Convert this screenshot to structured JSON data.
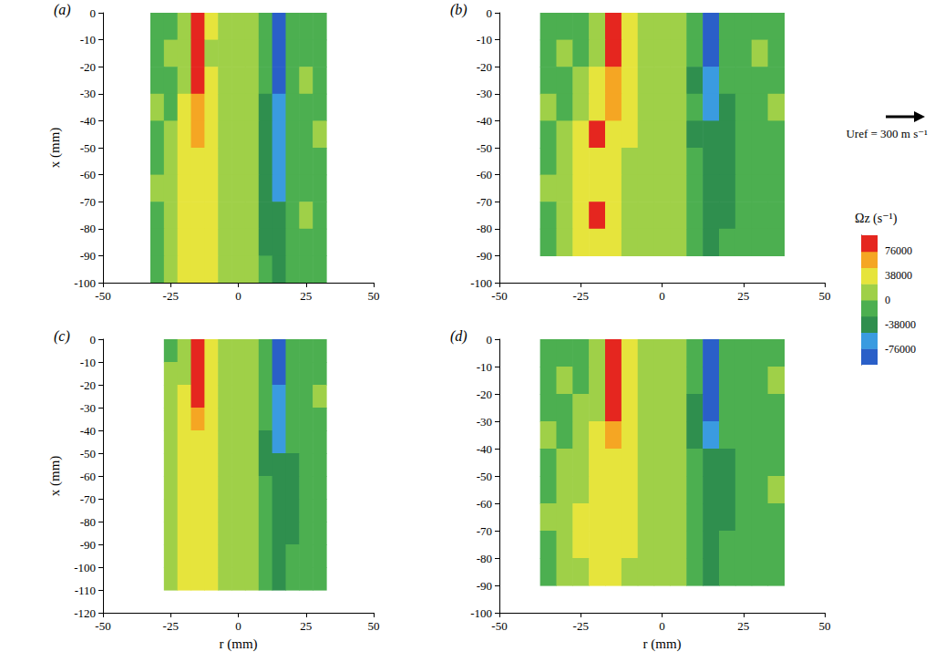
{
  "chart_data": {
    "type": "heatmap",
    "xlabel": "r (mm)",
    "ylabel": "x (mm)",
    "reference_vector": {
      "label": "Uref = 300 m s⁻¹"
    },
    "colorbar": {
      "label": "Ωz (s⁻¹)",
      "range": [
        -100000,
        100000
      ],
      "ticks": [
        -76000,
        -38000,
        0,
        38000,
        76000
      ],
      "colors": [
        "#2a5fc8",
        "#3a9be0",
        "#2f8f4e",
        "#4caf50",
        "#9fd048",
        "#e6e43c",
        "#f5a623",
        "#e5261f"
      ]
    },
    "panels": [
      {
        "label": "(a)",
        "xlim": [
          -50,
          50
        ],
        "xticks": [
          -50,
          -25,
          0,
          25,
          50
        ],
        "ylim": [
          -100,
          0
        ],
        "yticks": [
          0,
          -10,
          -20,
          -30,
          -40,
          -50,
          -60,
          -70,
          -80,
          -90,
          -100
        ],
        "vorticity": {
          "r": [
            -30,
            -25,
            -20,
            -15,
            -10,
            -5,
            0,
            5,
            10,
            15,
            20,
            25,
            30
          ],
          "x": [
            -5,
            -15,
            -25,
            -35,
            -45,
            -55,
            -65,
            -75,
            -85,
            -95
          ],
          "values": [
            [
              -5000,
              -5000,
              10000,
              90000,
              30000,
              10000,
              5000,
              10000,
              -10000,
              -90000,
              -10000,
              -5000,
              -5000
            ],
            [
              -5000,
              5000,
              15000,
              85000,
              20000,
              10000,
              15000,
              5000,
              -20000,
              -85000,
              -15000,
              -5000,
              -10000
            ],
            [
              -5000,
              -5000,
              20000,
              80000,
              25000,
              15000,
              10000,
              10000,
              -25000,
              -80000,
              -10000,
              5000,
              -5000
            ],
            [
              5000,
              -5000,
              25000,
              70000,
              30000,
              20000,
              15000,
              10000,
              -30000,
              -70000,
              -15000,
              -5000,
              -5000
            ],
            [
              -5000,
              10000,
              30000,
              55000,
              30000,
              20000,
              10000,
              5000,
              -30000,
              -65000,
              -20000,
              -5000,
              5000
            ],
            [
              -5000,
              5000,
              35000,
              45000,
              30000,
              15000,
              20000,
              10000,
              -35000,
              -60000,
              -20000,
              -5000,
              -5000
            ],
            [
              5000,
              15000,
              40000,
              40000,
              25000,
              20000,
              10000,
              5000,
              -30000,
              -55000,
              -25000,
              -5000,
              -5000
            ],
            [
              -5000,
              20000,
              40000,
              35000,
              30000,
              15000,
              10000,
              10000,
              -35000,
              -50000,
              -20000,
              5000,
              -5000
            ],
            [
              -5000,
              15000,
              35000,
              30000,
              25000,
              20000,
              10000,
              5000,
              -30000,
              -45000,
              -25000,
              -5000,
              -5000
            ],
            [
              -5000,
              10000,
              30000,
              30000,
              25000,
              15000,
              10000,
              10000,
              -25000,
              -45000,
              -20000,
              -5000,
              -5000
            ]
          ]
        }
      },
      {
        "label": "(b)",
        "xlim": [
          -50,
          50
        ],
        "xticks": [
          -50,
          -25,
          0,
          25,
          50
        ],
        "ylim": [
          -100,
          0
        ],
        "yticks": [
          0,
          -10,
          -20,
          -30,
          -40,
          -50,
          -60,
          -70,
          -80,
          -90,
          -100
        ],
        "vorticity": {
          "r": [
            -35,
            -30,
            -25,
            -20,
            -15,
            -10,
            -5,
            0,
            5,
            10,
            15,
            20,
            25,
            30,
            35
          ],
          "x": [
            -5,
            -15,
            -25,
            -35,
            -45,
            -55,
            -65,
            -75,
            -85
          ],
          "values": [
            [
              -5000,
              -5000,
              -5000,
              10000,
              90000,
              30000,
              10000,
              5000,
              10000,
              -20000,
              -90000,
              -10000,
              -5000,
              -5000,
              -5000
            ],
            [
              -5000,
              5000,
              -5000,
              15000,
              85000,
              25000,
              10000,
              15000,
              5000,
              -20000,
              -85000,
              -15000,
              -5000,
              5000,
              -5000
            ],
            [
              -5000,
              -5000,
              5000,
              30000,
              70000,
              30000,
              15000,
              5000,
              10000,
              -30000,
              -75000,
              -20000,
              -5000,
              -5000,
              -5000
            ],
            [
              5000,
              -5000,
              10000,
              40000,
              50000,
              25000,
              20000,
              10000,
              5000,
              -25000,
              -60000,
              -30000,
              -10000,
              -5000,
              5000
            ],
            [
              -5000,
              5000,
              30000,
              85000,
              40000,
              30000,
              10000,
              15000,
              10000,
              -30000,
              -50000,
              -35000,
              -15000,
              -5000,
              -5000
            ],
            [
              -5000,
              10000,
              35000,
              40000,
              30000,
              20000,
              15000,
              5000,
              10000,
              -20000,
              -45000,
              -30000,
              -15000,
              -5000,
              -5000
            ],
            [
              5000,
              10000,
              30000,
              35000,
              25000,
              15000,
              10000,
              10000,
              5000,
              -25000,
              -40000,
              -35000,
              -20000,
              -5000,
              -5000
            ],
            [
              -5000,
              15000,
              35000,
              80000,
              40000,
              20000,
              10000,
              5000,
              10000,
              -20000,
              -35000,
              -30000,
              -20000,
              -10000,
              -5000
            ],
            [
              -5000,
              10000,
              30000,
              45000,
              30000,
              20000,
              15000,
              10000,
              5000,
              -15000,
              -30000,
              -25000,
              -15000,
              -5000,
              -5000
            ]
          ]
        }
      },
      {
        "label": "(c)",
        "xlim": [
          -50,
          50
        ],
        "xticks": [
          -50,
          -25,
          0,
          25,
          50
        ],
        "ylim": [
          -120,
          0
        ],
        "yticks": [
          0,
          -10,
          -20,
          -30,
          -40,
          -50,
          -60,
          -70,
          -80,
          -90,
          -100,
          -110,
          -120
        ],
        "vorticity": {
          "r": [
            -25,
            -20,
            -15,
            -10,
            -5,
            0,
            5,
            10,
            15,
            20,
            25,
            30
          ],
          "x": [
            -5,
            -15,
            -25,
            -35,
            -45,
            -55,
            -65,
            -75,
            -85,
            -95,
            -105
          ],
          "values": [
            [
              -5000,
              15000,
              90000,
              30000,
              10000,
              10000,
              5000,
              -15000,
              -85000,
              -10000,
              -5000,
              -5000
            ],
            [
              5000,
              20000,
              85000,
              30000,
              15000,
              10000,
              10000,
              -20000,
              -80000,
              -15000,
              -5000,
              -5000
            ],
            [
              5000,
              30000,
              75000,
              30000,
              20000,
              15000,
              10000,
              -25000,
              -70000,
              -20000,
              -5000,
              5000
            ],
            [
              10000,
              35000,
              55000,
              35000,
              20000,
              10000,
              10000,
              -25000,
              -60000,
              -25000,
              -10000,
              -5000
            ],
            [
              10000,
              35000,
              45000,
              30000,
              15000,
              15000,
              5000,
              -30000,
              -55000,
              -25000,
              -10000,
              -5000
            ],
            [
              15000,
              40000,
              40000,
              30000,
              20000,
              10000,
              10000,
              -30000,
              -50000,
              -30000,
              -10000,
              -5000
            ],
            [
              15000,
              40000,
              35000,
              30000,
              20000,
              15000,
              10000,
              -25000,
              -50000,
              -30000,
              -15000,
              -5000
            ],
            [
              20000,
              40000,
              35000,
              25000,
              20000,
              10000,
              5000,
              -25000,
              -45000,
              -30000,
              -15000,
              -5000
            ],
            [
              20000,
              35000,
              35000,
              30000,
              15000,
              10000,
              10000,
              -25000,
              -40000,
              -30000,
              -10000,
              -5000
            ],
            [
              15000,
              35000,
              30000,
              25000,
              20000,
              15000,
              10000,
              -20000,
              -40000,
              -25000,
              -10000,
              -5000
            ],
            [
              15000,
              30000,
              30000,
              25000,
              20000,
              10000,
              10000,
              -20000,
              -35000,
              -25000,
              -10000,
              -5000
            ]
          ]
        }
      },
      {
        "label": "(d)",
        "xlim": [
          -50,
          50
        ],
        "xticks": [
          -50,
          -25,
          0,
          25,
          50
        ],
        "ylim": [
          -100,
          0
        ],
        "yticks": [
          0,
          -10,
          -20,
          -30,
          -40,
          -50,
          -60,
          -70,
          -80,
          -90,
          -100
        ],
        "vorticity": {
          "r": [
            -35,
            -30,
            -25,
            -20,
            -15,
            -10,
            -5,
            0,
            5,
            10,
            15,
            20,
            25,
            30,
            35
          ],
          "x": [
            -5,
            -15,
            -25,
            -35,
            -45,
            -55,
            -65,
            -75,
            -85
          ],
          "values": [
            [
              -5000,
              -5000,
              -5000,
              10000,
              90000,
              35000,
              10000,
              5000,
              10000,
              -20000,
              -90000,
              -10000,
              -5000,
              -5000,
              -5000
            ],
            [
              -5000,
              5000,
              -5000,
              15000,
              85000,
              30000,
              15000,
              10000,
              10000,
              -25000,
              -85000,
              -15000,
              -5000,
              -5000,
              5000
            ],
            [
              -5000,
              -5000,
              5000,
              20000,
              80000,
              35000,
              20000,
              10000,
              15000,
              -30000,
              -80000,
              -20000,
              -5000,
              -5000,
              -5000
            ],
            [
              5000,
              -5000,
              10000,
              30000,
              55000,
              35000,
              20000,
              15000,
              10000,
              -30000,
              -60000,
              -25000,
              -10000,
              -5000,
              -5000
            ],
            [
              -5000,
              5000,
              15000,
              35000,
              45000,
              30000,
              20000,
              10000,
              15000,
              -25000,
              -50000,
              -30000,
              -10000,
              -5000,
              -5000
            ],
            [
              -5000,
              10000,
              20000,
              35000,
              40000,
              30000,
              15000,
              10000,
              10000,
              -25000,
              -45000,
              -30000,
              -15000,
              -5000,
              5000
            ],
            [
              5000,
              5000,
              25000,
              35000,
              35000,
              25000,
              20000,
              10000,
              5000,
              -20000,
              -40000,
              -30000,
              -10000,
              -5000,
              -5000
            ],
            [
              -5000,
              10000,
              25000,
              35000,
              35000,
              25000,
              15000,
              10000,
              10000,
              -20000,
              -40000,
              -25000,
              -10000,
              -5000,
              -5000
            ],
            [
              -5000,
              10000,
              20000,
              30000,
              30000,
              20000,
              15000,
              10000,
              10000,
              -15000,
              -35000,
              -25000,
              -10000,
              -5000,
              -5000
            ]
          ]
        }
      }
    ]
  }
}
